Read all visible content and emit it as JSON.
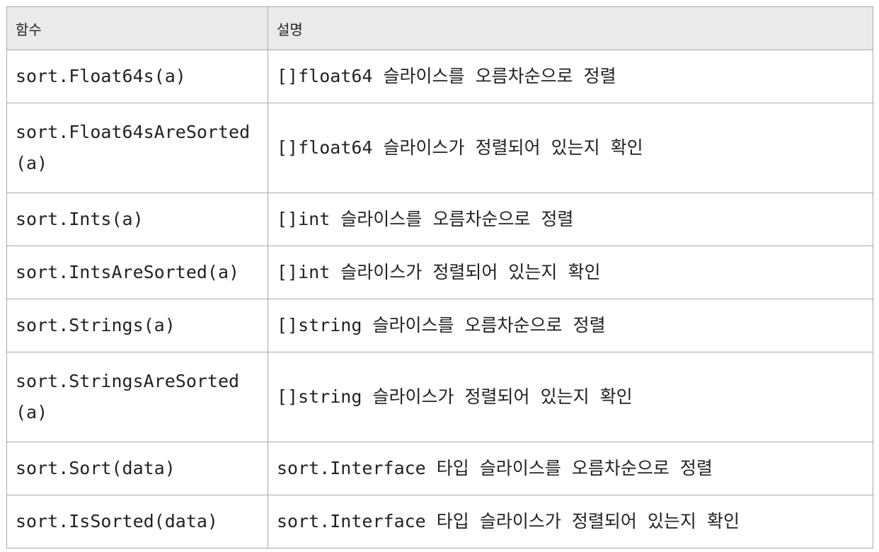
{
  "table": {
    "headers": [
      "함수",
      "설명"
    ],
    "rows": [
      {
        "func": "sort.Float64s(a)",
        "desc": "[]float64 슬라이스를 오름차순으로 정렬"
      },
      {
        "func": "sort.Float64sAreSorted(a)",
        "desc": "[]float64 슬라이스가 정렬되어 있는지 확인"
      },
      {
        "func": "sort.Ints(a)",
        "desc": "[]int 슬라이스를 오름차순으로 정렬"
      },
      {
        "func": "sort.IntsAreSorted(a)",
        "desc": "[]int 슬라이스가 정렬되어 있는지 확인"
      },
      {
        "func": "sort.Strings(a)",
        "desc": "[]string 슬라이스를 오름차순으로 정렬"
      },
      {
        "func": "sort.StringsAreSorted(a)",
        "desc": "[]string 슬라이스가 정렬되어 있는지 확인"
      },
      {
        "func": "sort.Sort(data)",
        "desc": "sort.Interface 타입 슬라이스를 오름차순으로 정렬"
      },
      {
        "func": "sort.IsSorted(data)",
        "desc": "sort.Interface 타입 슬라이스가 정렬되어 있는지 확인"
      }
    ]
  }
}
